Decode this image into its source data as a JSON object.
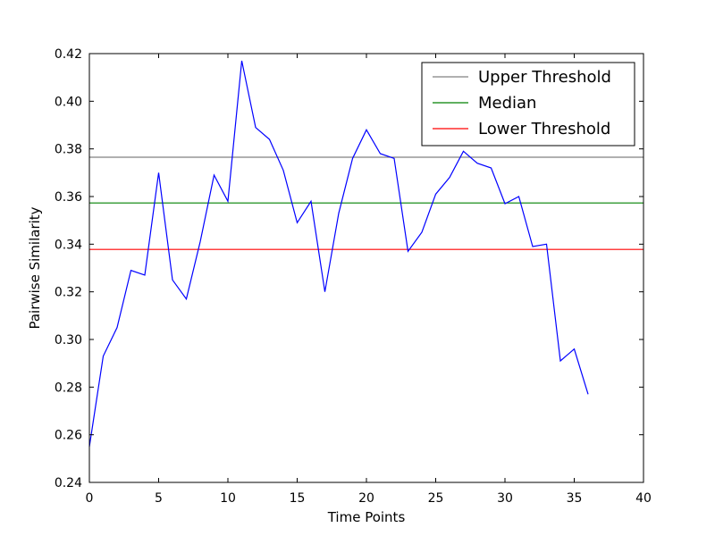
{
  "chart_data": {
    "type": "line",
    "title": "",
    "xlabel": "Time Points",
    "ylabel": "Pairwise Similarity",
    "xlim": [
      0,
      40
    ],
    "ylim": [
      0.24,
      0.42
    ],
    "x_ticks": [
      "0",
      "5",
      "10",
      "15",
      "20",
      "25",
      "30",
      "35",
      "40"
    ],
    "y_ticks": [
      "0.24",
      "0.26",
      "0.28",
      "0.30",
      "0.32",
      "0.34",
      "0.36",
      "0.38",
      "0.40",
      "0.42"
    ],
    "grid": false,
    "legend_position": "top-right",
    "series": [
      {
        "color": "#0000ff",
        "x": [
          0,
          1,
          2,
          3,
          4,
          5,
          6,
          7,
          8,
          9,
          10,
          11,
          12,
          13,
          14,
          15,
          16,
          17,
          18,
          19,
          20,
          21,
          22,
          23,
          24,
          25,
          26,
          27,
          28,
          29,
          30,
          31,
          32,
          33,
          34,
          35,
          36
        ],
        "values": [
          0.255,
          0.293,
          0.305,
          0.329,
          0.327,
          0.37,
          0.325,
          0.317,
          0.341,
          0.369,
          0.358,
          0.417,
          0.389,
          0.384,
          0.371,
          0.349,
          0.358,
          0.32,
          0.353,
          0.376,
          0.388,
          0.378,
          0.376,
          0.337,
          0.345,
          0.361,
          0.368,
          0.379,
          0.374,
          0.372,
          0.357,
          0.36,
          0.339,
          0.34,
          0.291,
          0.296,
          0.277
        ]
      }
    ],
    "reference_lines": [
      {
        "name": "Upper Threshold",
        "value": 0.3765,
        "color": "#808080"
      },
      {
        "name": "Median",
        "value": 0.3573,
        "color": "#008000"
      },
      {
        "name": "Lower Threshold",
        "value": 0.3378,
        "color": "#ff0000"
      }
    ]
  }
}
